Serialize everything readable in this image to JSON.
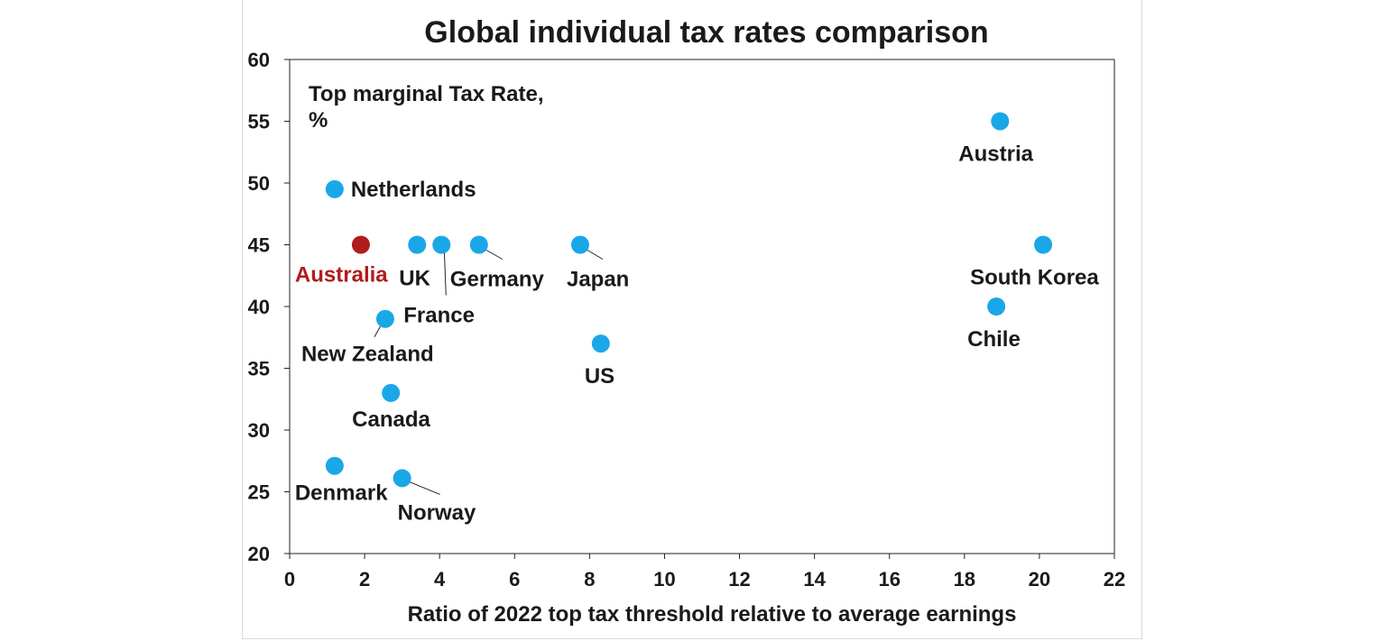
{
  "chart_data": {
    "type": "scatter",
    "title": "Global individual tax rates comparison",
    "xlabel": "Ratio of 2022 top tax threshold relative to average earnings",
    "ylabel": "Top marginal Tax Rate, %",
    "ylabel_lines": [
      "Top marginal Tax Rate,",
      "%"
    ],
    "xlim": [
      0,
      22
    ],
    "ylim": [
      20,
      60
    ],
    "xticks": [
      0,
      2,
      4,
      6,
      8,
      10,
      12,
      14,
      16,
      18,
      20,
      22
    ],
    "yticks": [
      20,
      25,
      30,
      35,
      40,
      45,
      50,
      55,
      60
    ],
    "grid": false,
    "colors": {
      "default": "#1aa7e8",
      "highlight": "#b01c1c",
      "text": "#1a1a1a"
    },
    "points": [
      {
        "label": "Australia",
        "x": 1.9,
        "y": 45,
        "highlight": true
      },
      {
        "label": "UK",
        "x": 3.4,
        "y": 45
      },
      {
        "label": "France",
        "x": 4.05,
        "y": 45
      },
      {
        "label": "Germany",
        "x": 5.05,
        "y": 45
      },
      {
        "label": "Japan",
        "x": 7.75,
        "y": 45
      },
      {
        "label": "Netherlands",
        "x": 1.2,
        "y": 49.5
      },
      {
        "label": "New Zealand",
        "x": 2.55,
        "y": 39
      },
      {
        "label": "US",
        "x": 8.3,
        "y": 37
      },
      {
        "label": "Canada",
        "x": 2.7,
        "y": 33
      },
      {
        "label": "Denmark",
        "x": 1.2,
        "y": 27.1
      },
      {
        "label": "Norway",
        "x": 3.0,
        "y": 26.1
      },
      {
        "label": "Austria",
        "x": 18.95,
        "y": 55
      },
      {
        "label": "South Korea",
        "x": 20.1,
        "y": 45
      },
      {
        "label": "Chile",
        "x": 18.85,
        "y": 40
      }
    ]
  }
}
